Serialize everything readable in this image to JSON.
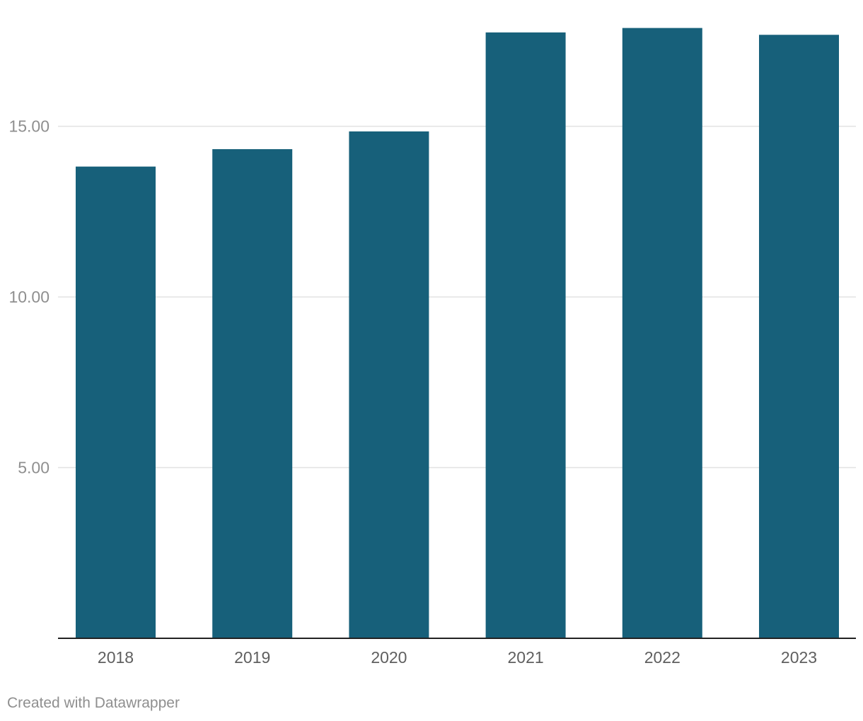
{
  "chart_data": {
    "type": "bar",
    "categories": [
      "2018",
      "2019",
      "2020",
      "2021",
      "2022",
      "2023"
    ],
    "values": [
      13.82,
      14.33,
      14.85,
      17.75,
      17.88,
      17.68
    ],
    "ylim": [
      0,
      18.7
    ],
    "yticks": [
      {
        "value": 5,
        "label": "5.00"
      },
      {
        "value": 10,
        "label": "10.00"
      },
      {
        "value": 15,
        "label": "15.00"
      }
    ],
    "title": "",
    "xlabel": "",
    "ylabel": "",
    "grid": true,
    "bar_color": "#17607a"
  },
  "footer": {
    "credit": "Created with Datawrapper"
  }
}
